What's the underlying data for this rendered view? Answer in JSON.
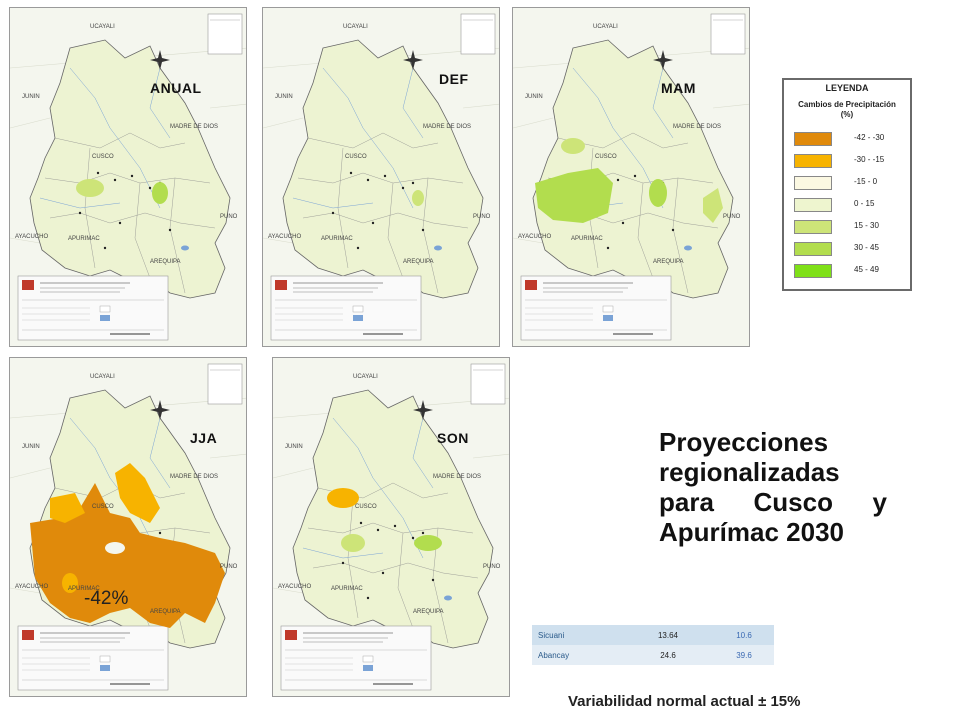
{
  "panels": [
    {
      "id": "anual",
      "label": "ANUAL",
      "north": "UCAYALI",
      "west": "JUNIN",
      "mdd": "MADRE DE DIOS",
      "cusco": "CUSCO",
      "apu": "APURIMAC",
      "aya": "AYACUCHO",
      "puno": "PUNO",
      "areq": "AREQUIPA"
    },
    {
      "id": "def",
      "label": "DEF",
      "north": "UCAYALI",
      "west": "JUNIN",
      "mdd": "MADRE DE DIOS",
      "cusco": "CUSCO",
      "apu": "APURIMAC",
      "aya": "AYACUCHO",
      "puno": "PUNO",
      "areq": "AREQUIPA"
    },
    {
      "id": "mam",
      "label": "MAM",
      "north": "UCAYALI",
      "west": "JUNIN",
      "mdd": "MADRE DE DIOS",
      "cusco": "CUSCO",
      "apu": "APURIMAC",
      "aya": "AYACUCHO",
      "puno": "PUNO",
      "areq": "AREQUIPA"
    },
    {
      "id": "jja",
      "label": "JJA",
      "north": "UCAYALI",
      "west": "JUNIN",
      "mdd": "MADRE DE DIOS",
      "cusco": "CUSCO",
      "apu": "APURIMAC",
      "aya": "AYACUCHO",
      "puno": "PUNO",
      "areq": "AREQUIPA"
    },
    {
      "id": "son",
      "label": "SON",
      "north": "UCAYALI",
      "west": "JUNIN",
      "mdd": "MADRE DE DIOS",
      "cusco": "CUSCO",
      "apu": "APURIMAC",
      "aya": "AYACUCHO",
      "puno": "PUNO",
      "areq": "AREQUIPA"
    }
  ],
  "jja_value": "-42%",
  "legend": {
    "title": "LEYENDA",
    "subtitle_line1": "Cambios de Precipitación",
    "subtitle_line2": "(%)",
    "items": [
      {
        "range": "-42 - -30",
        "color": "#e08a0b"
      },
      {
        "range": "-30 - -15",
        "color": "#f7b300"
      },
      {
        "range": "-15 - 0",
        "color": "#fbf8e2"
      },
      {
        "range": "0 - 15",
        "color": "#eef5cf"
      },
      {
        "range": "15 - 30",
        "color": "#cde478"
      },
      {
        "range": "30 - 45",
        "color": "#b2dd4e"
      },
      {
        "range": "45 - 49",
        "color": "#7fe018"
      }
    ]
  },
  "title": {
    "line1": "Proyecciones",
    "line2": "regionalizadas",
    "line3_words": [
      "para",
      "Cusco",
      "y"
    ],
    "line4": "Apurímac 2030"
  },
  "table": {
    "rows": [
      {
        "name": "Sicuani",
        "v1": "13.64",
        "v2": "10.6"
      },
      {
        "name": "Abancay",
        "v1": "24.6",
        "v2": "39.6"
      }
    ]
  },
  "footer": "Variabilidad normal actual ± 15%",
  "colors": {
    "base_fill": "#edf3d2",
    "light_green": "#cde478",
    "mid_green": "#b2dd4e",
    "orange_dark": "#e08a0b",
    "orange": "#f7b300"
  }
}
